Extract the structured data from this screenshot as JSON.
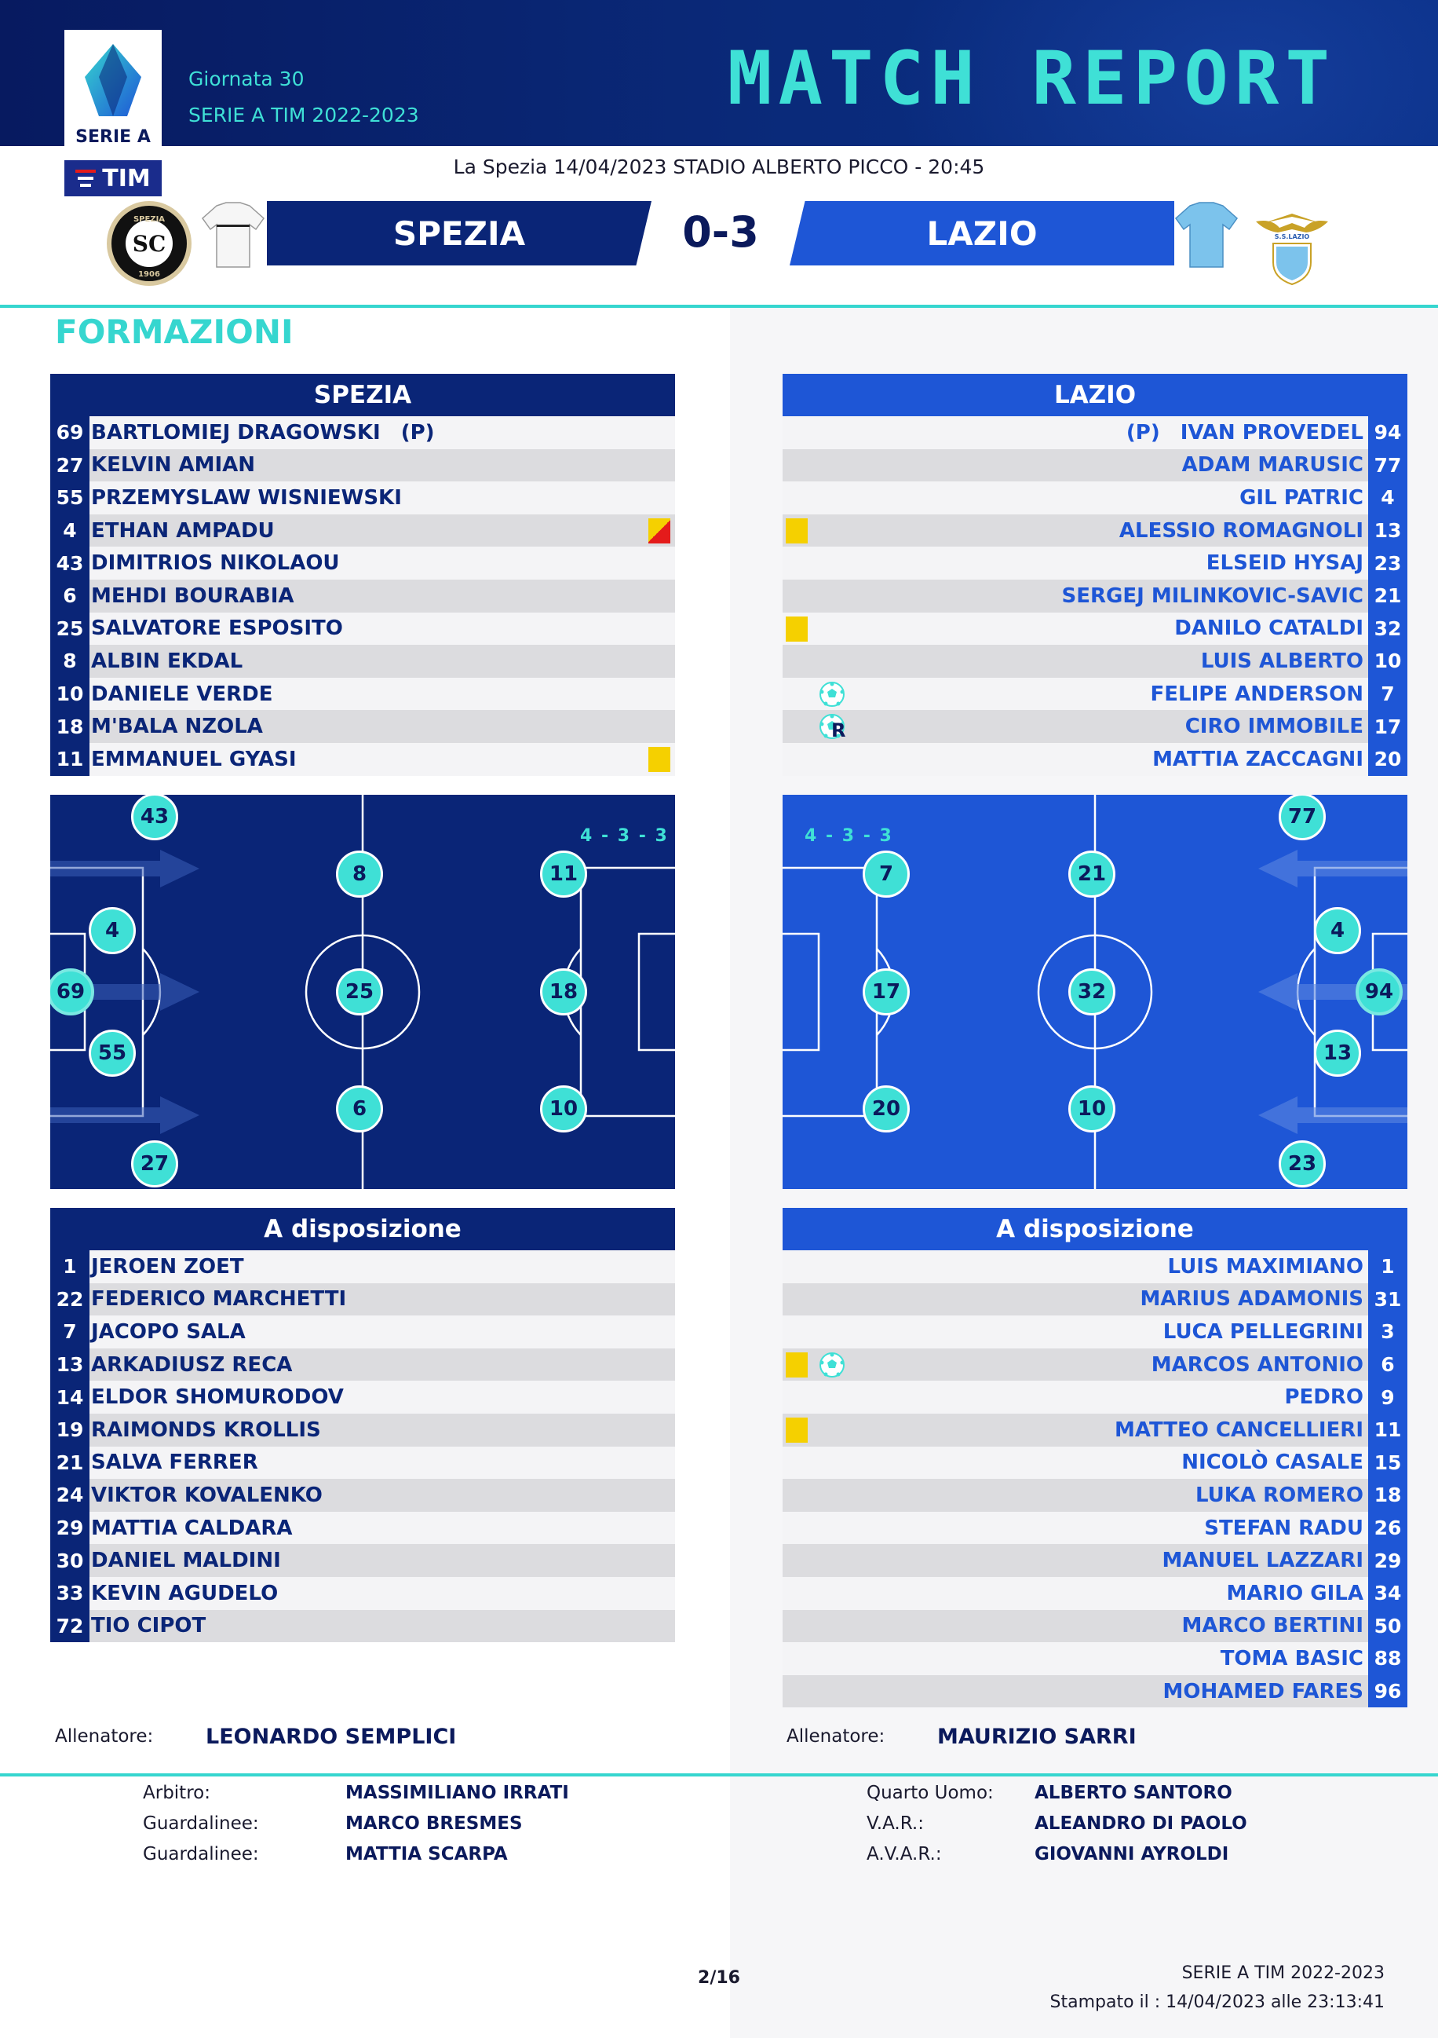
{
  "header": {
    "league_logo_text": "SERIE A",
    "sponsor_text": "TIM",
    "giornata": "Giornata 30",
    "season": "SERIE A TIM 2022-2023",
    "title": "MATCH REPORT"
  },
  "match": {
    "info": "La Spezia 14/04/2023 STADIO ALBERTO PICCO - 20:45",
    "home": "SPEZIA",
    "away": "LAZIO",
    "score": "0-3",
    "home_crest_text": "SPEZIA",
    "home_crest_year": "1906",
    "away_crest_text": "S.S.LAZIO"
  },
  "section_title": "FORMAZIONI",
  "home_lineup": {
    "title": "SPEZIA",
    "players": [
      {
        "num": "69",
        "name": "BARTLOMIEJ DRAGOWSKI",
        "tag": "(P)"
      },
      {
        "num": "27",
        "name": "KELVIN AMIAN"
      },
      {
        "num": "55",
        "name": "PRZEMYSLAW WISNIEWSKI"
      },
      {
        "num": "4",
        "name": "ETHAN AMPADU",
        "event": "yellow-red"
      },
      {
        "num": "43",
        "name": "DIMITRIOS NIKOLAOU"
      },
      {
        "num": "6",
        "name": "MEHDI BOURABIA"
      },
      {
        "num": "25",
        "name": "SALVATORE ESPOSITO"
      },
      {
        "num": "8",
        "name": "ALBIN EKDAL"
      },
      {
        "num": "10",
        "name": "DANIELE VERDE"
      },
      {
        "num": "18",
        "name": "M'BALA NZOLA"
      },
      {
        "num": "11",
        "name": "EMMANUEL GYASI",
        "event": "yellow"
      }
    ]
  },
  "away_lineup": {
    "title": "LAZIO",
    "players": [
      {
        "num": "94",
        "name": "IVAN PROVEDEL",
        "tag": "(P)"
      },
      {
        "num": "77",
        "name": "ADAM MARUSIC"
      },
      {
        "num": "4",
        "name": "GIL PATRIC"
      },
      {
        "num": "13",
        "name": "ALESSIO ROMAGNOLI",
        "event": "yellow"
      },
      {
        "num": "23",
        "name": "ELSEID HYSAJ"
      },
      {
        "num": "21",
        "name": "SERGEJ MILINKOVIC-SAVIC"
      },
      {
        "num": "32",
        "name": "DANILO CATALDI",
        "event": "yellow"
      },
      {
        "num": "10",
        "name": "LUIS ALBERTO"
      },
      {
        "num": "7",
        "name": "FELIPE ANDERSON",
        "event": "goal"
      },
      {
        "num": "17",
        "name": "CIRO IMMOBILE",
        "event": "goal-penalty",
        "event_mark": "R"
      },
      {
        "num": "20",
        "name": "MATTIA ZACCAGNI"
      }
    ]
  },
  "home_pitch": {
    "formation": "4 - 3 - 3",
    "players": [
      "43",
      "4",
      "69",
      "55",
      "27",
      "8",
      "25",
      "6",
      "11",
      "18",
      "10"
    ]
  },
  "away_pitch": {
    "formation": "4 - 3 - 3",
    "players": [
      "77",
      "4",
      "94",
      "13",
      "23",
      "21",
      "32",
      "10",
      "7",
      "17",
      "20"
    ]
  },
  "home_bench": {
    "title": "A disposizione",
    "players": [
      {
        "num": "1",
        "name": "JEROEN ZOET"
      },
      {
        "num": "22",
        "name": "FEDERICO MARCHETTI"
      },
      {
        "num": "7",
        "name": "JACOPO SALA"
      },
      {
        "num": "13",
        "name": "ARKADIUSZ RECA"
      },
      {
        "num": "14",
        "name": "ELDOR SHOMURODOV"
      },
      {
        "num": "19",
        "name": "RAIMONDS KROLLIS"
      },
      {
        "num": "21",
        "name": "SALVA FERRER"
      },
      {
        "num": "24",
        "name": "VIKTOR KOVALENKO"
      },
      {
        "num": "29",
        "name": "MATTIA CALDARA"
      },
      {
        "num": "30",
        "name": "DANIEL MALDINI"
      },
      {
        "num": "33",
        "name": "KEVIN AGUDELO"
      },
      {
        "num": "72",
        "name": "TIO CIPOT"
      }
    ]
  },
  "away_bench": {
    "title": "A disposizione",
    "players": [
      {
        "num": "1",
        "name": "LUIS MAXIMIANO"
      },
      {
        "num": "31",
        "name": "MARIUS ADAMONIS"
      },
      {
        "num": "3",
        "name": "LUCA PELLEGRINI"
      },
      {
        "num": "6",
        "name": "MARCOS ANTONIO",
        "event": "yellow-goal"
      },
      {
        "num": "9",
        "name": "PEDRO"
      },
      {
        "num": "11",
        "name": "MATTEO CANCELLIERI",
        "event": "yellow"
      },
      {
        "num": "15",
        "name": "NICOLÒ CASALE"
      },
      {
        "num": "18",
        "name": "LUKA ROMERO"
      },
      {
        "num": "26",
        "name": "STEFAN RADU"
      },
      {
        "num": "29",
        "name": "MANUEL LAZZARI"
      },
      {
        "num": "34",
        "name": "MARIO GILA"
      },
      {
        "num": "50",
        "name": "MARCO BERTINI"
      },
      {
        "num": "88",
        "name": "TOMA BASIC"
      },
      {
        "num": "96",
        "name": "MOHAMED FARES"
      }
    ]
  },
  "coaches": {
    "label": "Allenatore:",
    "home": "LEONARDO SEMPLICI",
    "away": "MAURIZIO SARRI"
  },
  "officials": {
    "left": [
      {
        "label": "Arbitro:",
        "name": "MASSIMILIANO  IRRATI"
      },
      {
        "label": "Guardalinee:",
        "name": "MARCO  BRESMES"
      },
      {
        "label": "Guardalinee:",
        "name": "MATTIA  SCARPA"
      }
    ],
    "right": [
      {
        "label": "Quarto Uomo:",
        "name": "ALBERTO  SANTORO"
      },
      {
        "label": "V.A.R.:",
        "name": "ALEANDRO  DI PAOLO"
      },
      {
        "label": "A.V.A.R.:",
        "name": "GIOVANNI  AYROLDI"
      }
    ]
  },
  "footer": {
    "page": "2/16",
    "season": "SERIE A TIM 2022-2023",
    "printed": "Stampato il : 14/04/2023 alle 23:13:41"
  },
  "colors": {
    "navy": "#0a2577",
    "blue": "#1e56d6",
    "cyan": "#36d6cf",
    "yellow_card": "#f5d000",
    "red_card": "#e41b1b"
  }
}
